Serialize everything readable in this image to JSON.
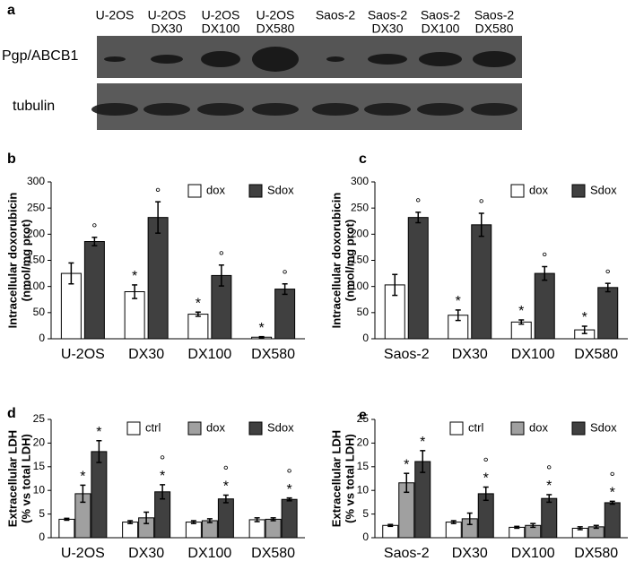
{
  "blot": {
    "panel": "a",
    "lanes": [
      [
        "U-2OS"
      ],
      [
        "U-2OS",
        "DX30"
      ],
      [
        "U-2OS",
        "DX100"
      ],
      [
        "U-2OS",
        "DX580"
      ],
      [
        "Saos-2"
      ],
      [
        "Saos-2",
        "DX30"
      ],
      [
        "Saos-2",
        "DX100"
      ],
      [
        "Saos-2",
        "DX580"
      ]
    ],
    "rows": [
      "Pgp/ABCB1",
      "tubulin"
    ]
  },
  "chart_data": [
    {
      "type": "bar",
      "panel": "b",
      "ylabel": [
        "Intracellular doxorubicin",
        "(nmol/mg prot)"
      ],
      "categories": [
        "U-2OS",
        "DX30",
        "DX100",
        "DX580"
      ],
      "ylim": [
        0,
        300
      ],
      "yticks": [
        0,
        50,
        100,
        150,
        200,
        250,
        300
      ],
      "legend": "top-right",
      "series": [
        {
          "name": "dox",
          "color": "#ffffff",
          "values": [
            125,
            90,
            47,
            3
          ],
          "errors": [
            20,
            13,
            4,
            1
          ],
          "annotations": [
            null,
            [
              "*"
            ],
            [
              "*"
            ],
            [
              "*"
            ]
          ]
        },
        {
          "name": "Sdox",
          "color": "#404040",
          "values": [
            186,
            232,
            121,
            95
          ],
          "errors": [
            8,
            30,
            20,
            10
          ],
          "annotations": [
            [
              "°"
            ],
            [
              "°"
            ],
            [
              "°"
            ],
            [
              "°"
            ]
          ]
        }
      ]
    },
    {
      "type": "bar",
      "panel": "c",
      "ylabel": [
        "Intracellular doxorubicin",
        "(nmol/mg prot)"
      ],
      "categories": [
        "Saos-2",
        "DX30",
        "DX100",
        "DX580"
      ],
      "ylim": [
        0,
        300
      ],
      "yticks": [
        0,
        50,
        100,
        150,
        200,
        250,
        300
      ],
      "legend": "top-right",
      "series": [
        {
          "name": "dox",
          "color": "#ffffff",
          "values": [
            103,
            45,
            32,
            17
          ],
          "errors": [
            20,
            10,
            4,
            7
          ],
          "annotations": [
            null,
            [
              "*"
            ],
            [
              "*"
            ],
            [
              "*"
            ]
          ]
        },
        {
          "name": "Sdox",
          "color": "#404040",
          "values": [
            232,
            218,
            125,
            98
          ],
          "errors": [
            10,
            22,
            13,
            8
          ],
          "annotations": [
            [
              "°"
            ],
            [
              "°"
            ],
            [
              "°"
            ],
            [
              "°"
            ]
          ]
        }
      ]
    },
    {
      "type": "bar",
      "panel": "d",
      "ylabel": [
        "Extracellular LDH",
        "(% vs total LDH)"
      ],
      "categories": [
        "U-2OS",
        "DX30",
        "DX100",
        "DX580"
      ],
      "ylim": [
        0,
        25
      ],
      "yticks": [
        0,
        5,
        10,
        15,
        20,
        25
      ],
      "legend": "top-right",
      "series": [
        {
          "name": "ctrl",
          "color": "#ffffff",
          "values": [
            3.9,
            3.3,
            3.3,
            3.8
          ],
          "errors": [
            0.2,
            0.3,
            0.3,
            0.4
          ],
          "annotations": [
            null,
            null,
            null,
            null
          ]
        },
        {
          "name": "dox",
          "color": "#a0a0a0",
          "values": [
            9.3,
            4.2,
            3.6,
            3.9
          ],
          "errors": [
            1.8,
            1.2,
            0.4,
            0.3
          ],
          "annotations": [
            [
              "*"
            ],
            null,
            null,
            null
          ]
        },
        {
          "name": "Sdox",
          "color": "#404040",
          "values": [
            18.2,
            9.7,
            8.2,
            8.1
          ],
          "errors": [
            2.3,
            1.5,
            0.8,
            0.3
          ],
          "annotations": [
            [
              "*"
            ],
            [
              "°",
              "*"
            ],
            [
              "°",
              "*"
            ],
            [
              "°",
              "*"
            ]
          ]
        }
      ]
    },
    {
      "type": "bar",
      "panel": "e",
      "ylabel": [
        "Extracellular LDH",
        "(% vs total LDH)"
      ],
      "categories": [
        "Saos-2",
        "DX30",
        "DX100",
        "DX580"
      ],
      "ylim": [
        0,
        25
      ],
      "yticks": [
        0,
        5,
        10,
        15,
        20,
        25
      ],
      "legend": "top-right",
      "series": [
        {
          "name": "ctrl",
          "color": "#ffffff",
          "values": [
            2.6,
            3.3,
            2.2,
            2.0
          ],
          "errors": [
            0.2,
            0.3,
            0.2,
            0.3
          ],
          "annotations": [
            null,
            null,
            null,
            null
          ]
        },
        {
          "name": "dox",
          "color": "#a0a0a0",
          "values": [
            11.6,
            4.0,
            2.6,
            2.3
          ],
          "errors": [
            2.0,
            1.2,
            0.4,
            0.3
          ],
          "annotations": [
            [
              "*"
            ],
            null,
            null,
            null
          ]
        },
        {
          "name": "Sdox",
          "color": "#404040",
          "values": [
            16.1,
            9.3,
            8.3,
            7.4
          ],
          "errors": [
            2.3,
            1.4,
            0.8,
            0.3
          ],
          "annotations": [
            [
              "*"
            ],
            [
              "°",
              "*"
            ],
            [
              "°",
              "*"
            ],
            [
              "°",
              "*"
            ]
          ]
        }
      ]
    }
  ]
}
